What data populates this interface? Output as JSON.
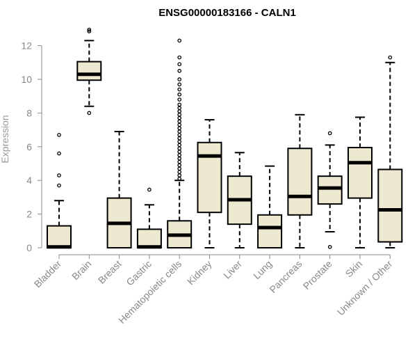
{
  "chart_data": {
    "type": "boxplot",
    "title": "ENSG00000183166 - CALN1",
    "ylabel": "Expression",
    "xlabel": "",
    "ylim": [
      0,
      12.5
    ],
    "yticks": [
      0,
      2,
      4,
      6,
      8,
      10,
      12
    ],
    "grid": false,
    "box_fill": "#ede8d0",
    "box_stroke": "#000000",
    "axis_color": "#888888",
    "categories": [
      "Bladder",
      "Brain",
      "Breast",
      "Gastric",
      "Hematopoietic cells",
      "Kidney",
      "Liver",
      "Lung",
      "Pancreas",
      "Prostate",
      "Skin",
      "Unknown / Other"
    ],
    "boxes": [
      {
        "whisker_low": 0.0,
        "q1": 0.0,
        "median": 0.05,
        "q3": 1.3,
        "whisker_high": 2.8,
        "outliers": [
          3.7,
          4.3,
          5.6,
          6.7
        ]
      },
      {
        "whisker_low": 8.4,
        "q1": 9.95,
        "median": 10.3,
        "q3": 11.05,
        "whisker_high": 12.3,
        "outliers": [
          8.0,
          12.85,
          12.95
        ]
      },
      {
        "whisker_low": 0.0,
        "q1": 0.0,
        "median": 1.45,
        "q3": 2.95,
        "whisker_high": 6.9,
        "outliers": []
      },
      {
        "whisker_low": 0.0,
        "q1": 0.0,
        "median": 0.05,
        "q3": 1.1,
        "whisker_high": 2.55,
        "outliers": [
          3.45
        ]
      },
      {
        "whisker_low": 0.0,
        "q1": 0.0,
        "median": 0.75,
        "q3": 1.6,
        "whisker_high": 4.0,
        "outliers": [
          4.1,
          4.3,
          4.5,
          4.7,
          4.9,
          5.1,
          5.3,
          5.5,
          5.7,
          5.9,
          6.1,
          6.3,
          6.5,
          6.7,
          6.9,
          7.1,
          7.3,
          7.5,
          7.7,
          7.9,
          8.1,
          8.3,
          8.5,
          8.8,
          9.1,
          9.4,
          9.7,
          10.0,
          10.5,
          10.9,
          11.3,
          12.3
        ]
      },
      {
        "whisker_low": 0.0,
        "q1": 2.1,
        "median": 5.45,
        "q3": 6.25,
        "whisker_high": 7.6,
        "outliers": []
      },
      {
        "whisker_low": 0.0,
        "q1": 1.4,
        "median": 2.85,
        "q3": 4.25,
        "whisker_high": 5.65,
        "outliers": []
      },
      {
        "whisker_low": 0.0,
        "q1": 0.0,
        "median": 1.2,
        "q3": 1.95,
        "whisker_high": 4.85,
        "outliers": []
      },
      {
        "whisker_low": 0.0,
        "q1": 1.95,
        "median": 3.05,
        "q3": 5.9,
        "whisker_high": 7.9,
        "outliers": []
      },
      {
        "whisker_low": 0.95,
        "q1": 2.6,
        "median": 3.55,
        "q3": 4.25,
        "whisker_high": 6.1,
        "outliers": [
          0.05,
          6.8
        ]
      },
      {
        "whisker_low": 0.0,
        "q1": 2.95,
        "median": 5.05,
        "q3": 5.95,
        "whisker_high": 7.75,
        "outliers": []
      },
      {
        "whisker_low": 0.0,
        "q1": 0.35,
        "median": 2.25,
        "q3": 4.65,
        "whisker_high": 11.0,
        "outliers": [
          11.3
        ]
      }
    ]
  }
}
